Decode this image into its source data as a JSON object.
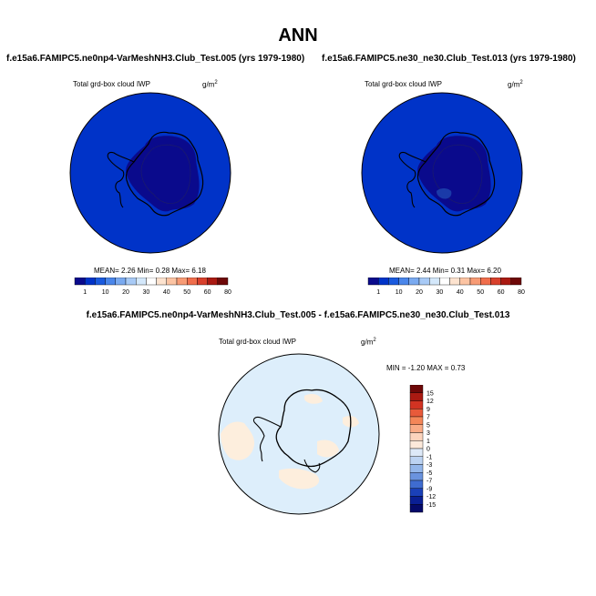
{
  "page_title": "ANN",
  "panels": [
    {
      "title": "f.e15a6.FAMIPC5.ne0np4-VarMeshNH3.Club_Test.005 (yrs 1979-1980)",
      "var_label": "Total grd-box cloud IWP",
      "units": "g/m",
      "units_exp": "2",
      "stats_text": "MEAN=   2.26  Min=   0.28  Max=   6.18"
    },
    {
      "title": "f.e15a6.FAMIPC5.ne30_ne30.Club_Test.013 (yrs 1979-1980)",
      "var_label": "Total grd-box cloud IWP",
      "units": "g/m",
      "units_exp": "2",
      "stats_text": "MEAN=   2.44  Min=   0.31  Max=   6.20"
    },
    {
      "title": "f.e15a6.FAMIPC5.ne0np4-VarMeshNH3.Club_Test.005 - f.e15a6.FAMIPC5.ne30_ne30.Club_Test.013",
      "var_label": "Total grd-box cloud IWP",
      "units": "g/m",
      "units_exp": "2",
      "stats_text": "MIN =  -1.20 MAX =   0.73"
    }
  ],
  "chart_data": [
    {
      "type": "heatmap",
      "title": "f.e15a6.FAMIPC5.ne0np4-VarMeshNH3.Club_Test.005 (yrs 1979-1980)",
      "variable": "Total grd-box cloud IWP",
      "units": "g/m2",
      "projection": "south polar stereographic",
      "mean": 2.26,
      "min": 0.28,
      "max": 6.18,
      "colorbar_levels": [
        1,
        10,
        20,
        30,
        40,
        50,
        60,
        80
      ],
      "colorbar_colors": [
        "#0a0a8c",
        "#0033c8",
        "#1a5ade",
        "#4a86ea",
        "#7aaaf0",
        "#a8caf6",
        "#d4e8fb",
        "#ffffff",
        "#fde3cf",
        "#fcc4a3",
        "#f79b75",
        "#f06e4c",
        "#d8402c",
        "#aa1a12",
        "#6e0808"
      ],
      "field_color_ocean": "#0033c8",
      "field_color_interior": "#0a0a8c"
    },
    {
      "type": "heatmap",
      "title": "f.e15a6.FAMIPC5.ne30_ne30.Club_Test.013 (yrs 1979-1980)",
      "variable": "Total grd-box cloud IWP",
      "units": "g/m2",
      "projection": "south polar stereographic",
      "mean": 2.44,
      "min": 0.31,
      "max": 6.2,
      "colorbar_levels": [
        1,
        10,
        20,
        30,
        40,
        50,
        60,
        80
      ],
      "colorbar_colors": [
        "#0a0a8c",
        "#0033c8",
        "#1a5ade",
        "#4a86ea",
        "#7aaaf0",
        "#a8caf6",
        "#d4e8fb",
        "#ffffff",
        "#fde3cf",
        "#fcc4a3",
        "#f79b75",
        "#f06e4c",
        "#d8402c",
        "#aa1a12",
        "#6e0808"
      ],
      "field_color_ocean": "#0033c8",
      "field_color_interior": "#0a0a8c"
    },
    {
      "type": "heatmap",
      "title": "f.e15a6.FAMIPC5.ne0np4-VarMeshNH3.Club_Test.005 - f.e15a6.FAMIPC5.ne30_ne30.Club_Test.013",
      "variable": "Total grd-box cloud IWP",
      "units": "g/m2",
      "projection": "south polar stereographic",
      "min": -1.2,
      "max": 0.73,
      "colorbar_levels": [
        15,
        12,
        9,
        7,
        5,
        3,
        1,
        0,
        -1,
        -3,
        -5,
        -7,
        -9,
        -12,
        -15
      ],
      "colorbar_colors": [
        "#6e0808",
        "#aa1a12",
        "#d23322",
        "#e85a3a",
        "#f48658",
        "#f9ab86",
        "#fcd4bd",
        "#fde9da",
        "#dde9f8",
        "#bcd3f2",
        "#93b6ea",
        "#6a93de",
        "#3f6cd0",
        "#1a40b8",
        "#0a1f94",
        "#050a6a"
      ],
      "field_color_background": "#ddeefb",
      "field_color_positive_patches": "#fdeedd"
    }
  ]
}
